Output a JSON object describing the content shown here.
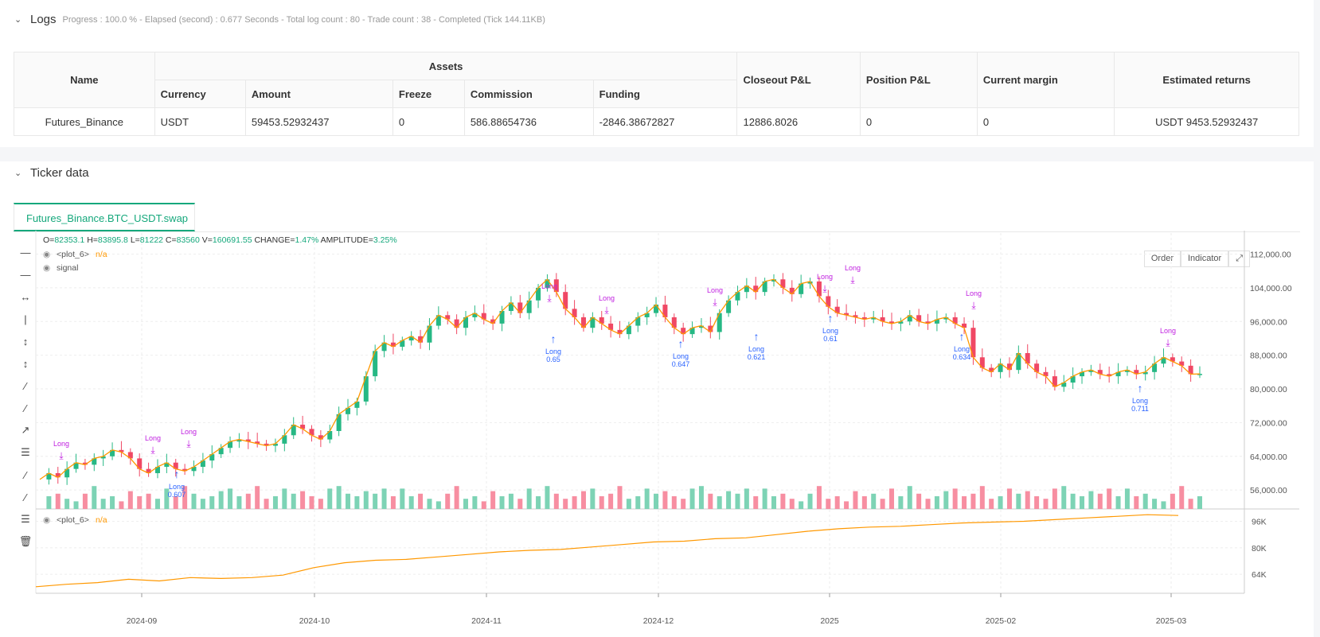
{
  "logs": {
    "title": "Logs",
    "meta": "Progress : 100.0 % - Elapsed (second) : 0.677  Seconds - Total log count : 80 - Trade count : 38 - Completed (Tick 144.11KB)"
  },
  "assets_table": {
    "group_header": "Assets",
    "headers": [
      "Name",
      "Currency",
      "Amount",
      "Freeze",
      "Commission",
      "Funding",
      "Closeout P&L",
      "Position P&L",
      "Current margin",
      "Estimated returns"
    ],
    "row": [
      "Futures_Binance",
      "USDT",
      "59453.52932437",
      "0",
      "586.88654736",
      "-2846.38672827",
      "12886.8026",
      "0",
      "0",
      "USDT 9453.52932437"
    ]
  },
  "ticker": {
    "title": "Ticker data",
    "tab": "Futures_Binance.BTC_USDT.swap",
    "buttons": {
      "order": "Order",
      "indicator": "Indicator"
    },
    "ohlc": {
      "o_label": "O=",
      "o": "82353.1",
      "h_label": "H=",
      "h": "83895.8",
      "l_label": "L=",
      "l": "81222",
      "c_label": "C=",
      "c": "83560",
      "v_label": "V=",
      "v": "160691.55",
      "chg_label": "CHANGE=",
      "chg": "1.47%",
      "amp_label": "AMPLITUDE=",
      "amp": "3.25%"
    },
    "legend": [
      {
        "name": "<plot_6>",
        "value": "n/a"
      },
      {
        "name": "signal",
        "value": ""
      }
    ],
    "sub_legend": {
      "name": "<plot_6>",
      "value": "n/a"
    }
  },
  "colors": {
    "up": "#26b884",
    "down": "#f04864",
    "line": "#ff9800",
    "accent": "#15a87c",
    "long_buy": "#2962ff",
    "long_sell": "#c020e0"
  },
  "chart_data": {
    "type": "candlestick",
    "x_ticks": [
      "2024-09",
      "2024-10",
      "2024-11",
      "2024-12",
      "2025",
      "2025-02",
      "2025-03"
    ],
    "y_ticks": [
      "112,000.00",
      "104,000.00",
      "96,000.00",
      "88,000.00",
      "80,000.00",
      "72,000.00",
      "64,000.00",
      "56,000.00"
    ],
    "y_range": [
      51500,
      117000
    ],
    "sub_y_ticks": [
      "96K",
      "80K",
      "64K"
    ],
    "sub_y_range": [
      54000,
      102000
    ],
    "close_path": [
      [
        0,
        58500
      ],
      [
        4,
        60000
      ],
      [
        8,
        59000
      ],
      [
        12,
        61000
      ],
      [
        16,
        62500
      ],
      [
        20,
        62000
      ],
      [
        24,
        63500
      ],
      [
        28,
        64000
      ],
      [
        32,
        65500
      ],
      [
        36,
        65000
      ],
      [
        40,
        63500
      ],
      [
        44,
        61000
      ],
      [
        48,
        60000
      ],
      [
        52,
        61500
      ],
      [
        56,
        62500
      ],
      [
        60,
        61000
      ],
      [
        64,
        60500
      ],
      [
        68,
        61500
      ],
      [
        72,
        63000
      ],
      [
        76,
        64500
      ],
      [
        80,
        66000
      ],
      [
        84,
        67500
      ],
      [
        88,
        68000
      ],
      [
        92,
        67500
      ],
      [
        96,
        67000
      ],
      [
        100,
        66500
      ],
      [
        104,
        67000
      ],
      [
        108,
        69000
      ],
      [
        112,
        71500
      ],
      [
        116,
        70500
      ],
      [
        120,
        69000
      ],
      [
        124,
        68000
      ],
      [
        128,
        70000
      ],
      [
        132,
        74000
      ],
      [
        136,
        75500
      ],
      [
        140,
        77000
      ],
      [
        144,
        83000
      ],
      [
        148,
        89000
      ],
      [
        152,
        91000
      ],
      [
        156,
        90000
      ],
      [
        160,
        91500
      ],
      [
        164,
        92500
      ],
      [
        168,
        91000
      ],
      [
        172,
        95000
      ],
      [
        176,
        97500
      ],
      [
        180,
        96500
      ],
      [
        184,
        94500
      ],
      [
        188,
        97000
      ],
      [
        192,
        98000
      ],
      [
        196,
        96500
      ],
      [
        200,
        95500
      ],
      [
        204,
        98500
      ],
      [
        208,
        100500
      ],
      [
        212,
        98000
      ],
      [
        216,
        101000
      ],
      [
        220,
        104000
      ],
      [
        224,
        106000
      ],
      [
        228,
        103000
      ],
      [
        232,
        99000
      ],
      [
        236,
        97000
      ],
      [
        240,
        94500
      ],
      [
        244,
        97000
      ],
      [
        248,
        95500
      ],
      [
        252,
        94000
      ],
      [
        256,
        93000
      ],
      [
        260,
        95000
      ],
      [
        264,
        97000
      ],
      [
        268,
        98000
      ],
      [
        272,
        100000
      ],
      [
        276,
        97000
      ],
      [
        280,
        94500
      ],
      [
        284,
        93000
      ],
      [
        288,
        94500
      ],
      [
        292,
        95000
      ],
      [
        296,
        93500
      ],
      [
        300,
        98000
      ],
      [
        304,
        101000
      ],
      [
        308,
        103000
      ],
      [
        312,
        104500
      ],
      [
        316,
        103000
      ],
      [
        320,
        105500
      ],
      [
        324,
        106000
      ],
      [
        328,
        104000
      ],
      [
        332,
        102500
      ],
      [
        336,
        105000
      ],
      [
        340,
        105500
      ],
      [
        344,
        102000
      ],
      [
        348,
        99500
      ],
      [
        352,
        98000
      ],
      [
        356,
        97500
      ],
      [
        360,
        97000
      ],
      [
        364,
        96500
      ],
      [
        368,
        97000
      ],
      [
        372,
        96000
      ],
      [
        376,
        95500
      ],
      [
        380,
        96000
      ],
      [
        384,
        97500
      ],
      [
        388,
        96000
      ],
      [
        392,
        95500
      ],
      [
        396,
        96500
      ],
      [
        400,
        97000
      ],
      [
        404,
        95500
      ],
      [
        408,
        94500
      ],
      [
        412,
        87500
      ],
      [
        416,
        85000
      ],
      [
        420,
        84000
      ],
      [
        424,
        86000
      ],
      [
        428,
        84500
      ],
      [
        432,
        88500
      ],
      [
        436,
        86000
      ],
      [
        440,
        84000
      ],
      [
        444,
        83000
      ],
      [
        448,
        80500
      ],
      [
        452,
        81500
      ],
      [
        456,
        83000
      ],
      [
        460,
        84000
      ],
      [
        464,
        84500
      ],
      [
        468,
        83500
      ],
      [
        472,
        83000
      ],
      [
        476,
        84000
      ],
      [
        480,
        84500
      ],
      [
        484,
        83500
      ],
      [
        488,
        84000
      ],
      [
        492,
        86000
      ],
      [
        496,
        87500
      ],
      [
        500,
        86500
      ],
      [
        504,
        85500
      ],
      [
        508,
        83500
      ],
      [
        512,
        83560
      ]
    ],
    "sub_path": [
      [
        0,
        56500
      ],
      [
        20,
        58000
      ],
      [
        40,
        59000
      ],
      [
        60,
        61000
      ],
      [
        80,
        60000
      ],
      [
        100,
        62000
      ],
      [
        120,
        61500
      ],
      [
        140,
        62000
      ],
      [
        160,
        63500
      ],
      [
        180,
        68000
      ],
      [
        200,
        71000
      ],
      [
        220,
        72500
      ],
      [
        240,
        73000
      ],
      [
        260,
        74500
      ],
      [
        280,
        76000
      ],
      [
        300,
        77500
      ],
      [
        320,
        78500
      ],
      [
        340,
        79000
      ],
      [
        360,
        80500
      ],
      [
        380,
        82000
      ],
      [
        400,
        83500
      ],
      [
        420,
        84000
      ],
      [
        440,
        85500
      ],
      [
        460,
        86000
      ],
      [
        480,
        88000
      ],
      [
        500,
        90000
      ],
      [
        520,
        91500
      ],
      [
        540,
        92500
      ],
      [
        560,
        93000
      ],
      [
        580,
        94000
      ],
      [
        600,
        95000
      ],
      [
        620,
        95500
      ],
      [
        640,
        96000
      ],
      [
        660,
        97000
      ],
      [
        680,
        98000
      ],
      [
        700,
        99000
      ],
      [
        720,
        100000
      ],
      [
        740,
        99500
      ]
    ],
    "volume_sample": [
      8,
      5,
      6,
      4,
      3,
      6,
      9,
      4,
      5,
      3,
      7,
      5,
      6,
      4,
      8,
      5,
      9,
      6,
      4,
      5,
      7,
      8,
      5,
      6,
      9,
      4,
      5,
      8,
      6,
      7,
      5,
      4,
      8,
      9,
      6,
      5,
      7,
      6,
      8,
      5
    ]
  },
  "annotations": {
    "long": "Long",
    "buy_labels": [
      "0.607",
      "0.65",
      "0.647",
      "0.621",
      "0.61",
      "0.634",
      "0.711"
    ]
  }
}
